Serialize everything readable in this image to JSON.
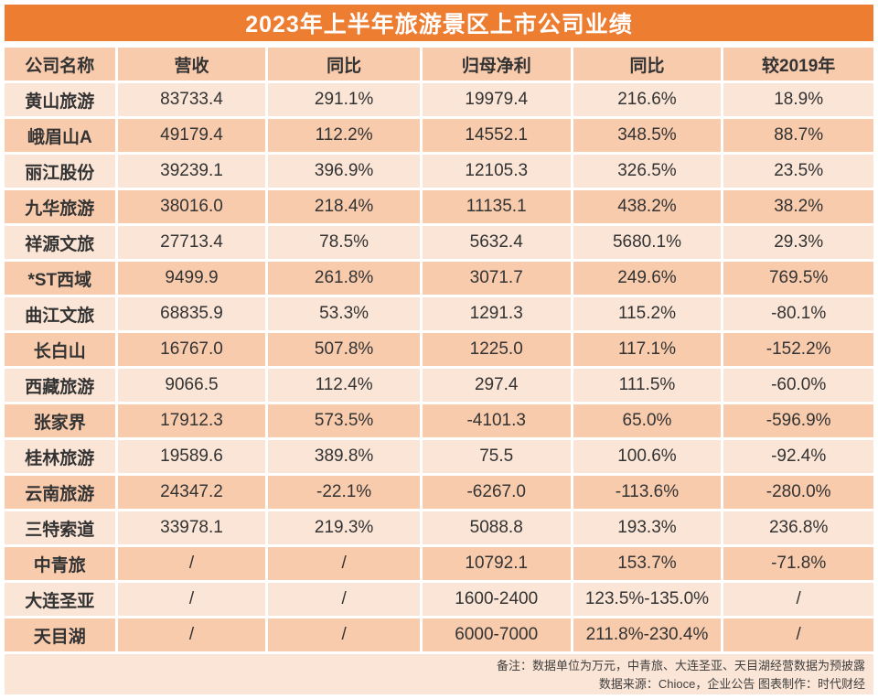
{
  "title": "2023年上半年旅游景区上市公司业绩",
  "colors": {
    "title_bg": "#ED7D31",
    "title_text": "#FFFFFF",
    "row_light": "#FBE5D6",
    "row_dark": "#F8CBAD",
    "text": "#333333"
  },
  "chart_data": {
    "type": "table",
    "title": "2023年上半年旅游景区上市公司业绩",
    "columns": [
      "公司名称",
      "营收",
      "同比",
      "归母净利",
      "同比",
      "较2019年"
    ],
    "rows": [
      [
        "黄山旅游",
        "83733.4",
        "291.1%",
        "19979.4",
        "216.6%",
        "18.9%"
      ],
      [
        "峨眉山A",
        "49179.4",
        "112.2%",
        "14552.1",
        "348.5%",
        "88.7%"
      ],
      [
        "丽江股份",
        "39239.1",
        "396.9%",
        "12105.3",
        "326.5%",
        "23.5%"
      ],
      [
        "九华旅游",
        "38016.0",
        "218.4%",
        "11135.1",
        "438.2%",
        "38.2%"
      ],
      [
        "祥源文旅",
        "27713.4",
        "78.5%",
        "5632.4",
        "5680.1%",
        "29.3%"
      ],
      [
        "*ST西域",
        "9499.9",
        "261.8%",
        "3071.7",
        "249.6%",
        "769.5%"
      ],
      [
        "曲江文旅",
        "68835.9",
        "53.3%",
        "1291.3",
        "115.2%",
        "-80.1%"
      ],
      [
        "长白山",
        "16767.0",
        "507.8%",
        "1225.0",
        "117.1%",
        "-152.2%"
      ],
      [
        "西藏旅游",
        "9066.5",
        "112.4%",
        "297.4",
        "111.5%",
        "-60.0%"
      ],
      [
        "张家界",
        "17912.3",
        "573.5%",
        "-4101.3",
        "65.0%",
        "-596.9%"
      ],
      [
        "桂林旅游",
        "19589.6",
        "389.8%",
        "75.5",
        "100.6%",
        "-92.4%"
      ],
      [
        "云南旅游",
        "24347.2",
        "-22.1%",
        "-6267.0",
        "-113.6%",
        "-280.0%"
      ],
      [
        "三特索道",
        "33978.1",
        "219.3%",
        "5088.8",
        "193.3%",
        "236.8%"
      ],
      [
        "中青旅",
        "/",
        "/",
        "10792.1",
        "153.7%",
        "-71.8%"
      ],
      [
        "大连圣亚",
        "/",
        "/",
        "1600-2400",
        "123.5%-135.0%",
        "/"
      ],
      [
        "天目湖",
        "/",
        "/",
        "6000-7000",
        "211.8%-230.4%",
        "/"
      ]
    ],
    "notes": [
      "备注：数据单位为万元，中青旅、大连圣亚、天目湖经营数据为预披露",
      "数据来源：Chioce，企业公告  图表制作：时代财经"
    ]
  }
}
